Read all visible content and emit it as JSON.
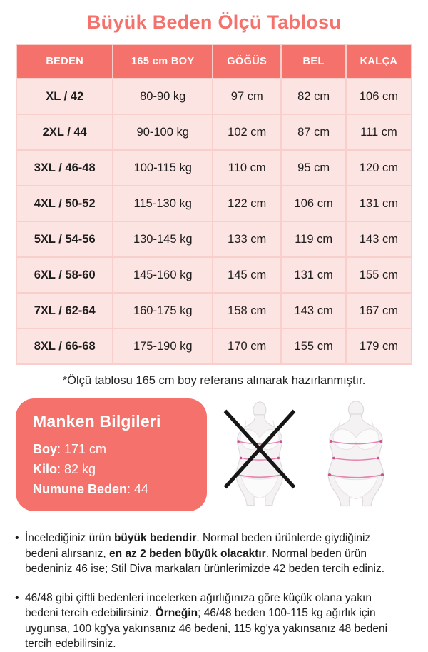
{
  "page": {
    "title": "Büyük Beden Ölçü Tablosu"
  },
  "table": {
    "headers": [
      "BEDEN",
      "165 cm BOY",
      "GÖĞÜS",
      "BEL",
      "KALÇA"
    ],
    "rows": [
      [
        "XL / 42",
        "80-90 kg",
        "97 cm",
        "82 cm",
        "106 cm"
      ],
      [
        "2XL / 44",
        "90-100 kg",
        "102 cm",
        "87 cm",
        "111 cm"
      ],
      [
        "3XL / 46-48",
        "100-115 kg",
        "110 cm",
        "95 cm",
        "120 cm"
      ],
      [
        "4XL / 50-52",
        "115-130 kg",
        "122 cm",
        "106 cm",
        "131 cm"
      ],
      [
        "5XL / 54-56",
        "130-145 kg",
        "133 cm",
        "119 cm",
        "143 cm"
      ],
      [
        "6XL / 58-60",
        "145-160 kg",
        "145 cm",
        "131 cm",
        "155 cm"
      ],
      [
        "7XL / 62-64",
        "160-175 kg",
        "158 cm",
        "143 cm",
        "167 cm"
      ],
      [
        "8XL / 66-68",
        "175-190 kg",
        "170 cm",
        "155 cm",
        "179 cm"
      ]
    ]
  },
  "footnote": "*Ölçü tablosu 165 cm boy referans alınarak hazırlanmıştır.",
  "model_info": {
    "title": "Manken Bilgileri",
    "lines": [
      {
        "segments": [
          {
            "text": "Boy",
            "bold": true
          },
          {
            "text": ": 171 cm",
            "bold": false
          }
        ]
      },
      {
        "segments": [
          {
            "text": "Kilo",
            "bold": true
          },
          {
            "text": ": 82 kg",
            "bold": false
          }
        ]
      },
      {
        "segments": [
          {
            "text": "Numune Beden",
            "bold": true
          },
          {
            "text": ": 44",
            "bold": false
          }
        ]
      }
    ]
  },
  "figures": {
    "left": "crossed-out-slim-figure",
    "right": "plus-size-measured-figure"
  },
  "notes": [
    {
      "segments": [
        {
          "text": "İncelediğiniz ürün ",
          "bold": false
        },
        {
          "text": "büyük bedendir",
          "bold": true
        },
        {
          "text": ". Normal beden ürünlerde giydiğiniz bedeni alırsanız, ",
          "bold": false
        },
        {
          "text": "en az 2 beden büyük olacaktır",
          "bold": true
        },
        {
          "text": ". Normal beden ürün bedeniniz 46 ise; Stil Diva markaları ürünlerimizde 42 beden tercih ediniz.",
          "bold": false
        }
      ]
    },
    {
      "segments": [
        {
          "text": "46/48 gibi çiftli bedenleri incelerken ağırlığınıza göre küçük olana yakın bedeni tercih edebilirsiniz. ",
          "bold": false
        },
        {
          "text": "Örneğin",
          "bold": true
        },
        {
          "text": "; 46/48 beden 100-115 kg ağırlık için uygunsa, 100 kg'ya yakınsanız 46 bedeni, 115 kg'ya yakınsanız 48 bedeni tercih edebilirsiniz.",
          "bold": false
        }
      ]
    }
  ],
  "colors": {
    "coral": "#f4716c",
    "cell_pink": "#fce4e2",
    "border_pink": "#f8cfcb",
    "text_dark": "#1d1d1d",
    "measure_line_pink": "#e583b0",
    "measure_dot_pink": "#c9538e",
    "cross_black": "#161616"
  }
}
